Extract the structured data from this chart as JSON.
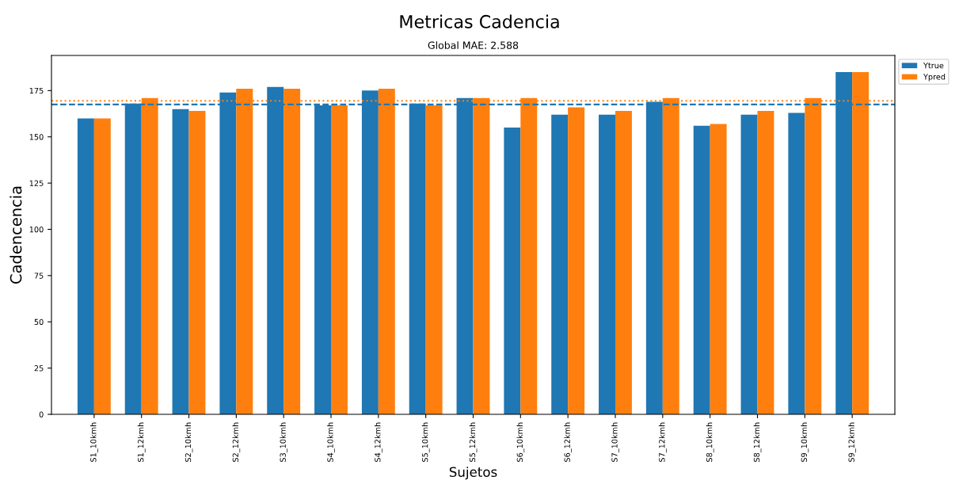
{
  "chart_data": {
    "type": "bar",
    "title": "Metricas Cadencia",
    "subtitle": "Global MAE: 2.588",
    "xlabel": "Sujetos",
    "ylabel": "Cadencencia",
    "categories": [
      "S1_10kmh",
      "S1_12kmh",
      "S2_10kmh",
      "S2_12kmh",
      "S3_10kmh",
      "S4_10kmh",
      "S4_12kmh",
      "S5_10kmh",
      "S5_12kmh",
      "S6_10kmh",
      "S6_12kmh",
      "S7_10kmh",
      "S7_12kmh",
      "S8_10kmh",
      "S8_12kmh",
      "S9_10kmh",
      "S9_12kmh"
    ],
    "series": [
      {
        "name": "Ytrue",
        "color": "#1f77b4",
        "values": [
          160,
          168,
          165,
          174,
          177,
          167,
          175,
          168,
          171,
          155,
          162,
          162,
          169,
          156,
          162,
          163,
          185
        ]
      },
      {
        "name": "Ypred",
        "color": "#ff7f0e",
        "values": [
          160,
          171,
          164,
          176,
          176,
          167,
          176,
          167,
          171,
          171,
          166,
          164,
          171,
          157,
          164,
          171,
          185
        ]
      }
    ],
    "ylim": [
      0,
      194
    ],
    "yticks": [
      0,
      25,
      50,
      75,
      100,
      125,
      150,
      175
    ],
    "ref_lines": [
      {
        "axis": "y",
        "value": 167.5,
        "color": "#1f77b4",
        "line_style": "dashed"
      },
      {
        "axis": "y",
        "value": 169.5,
        "color": "#ff7f0e",
        "line_style": "dotted"
      }
    ],
    "grid": false,
    "legend": "top right"
  }
}
